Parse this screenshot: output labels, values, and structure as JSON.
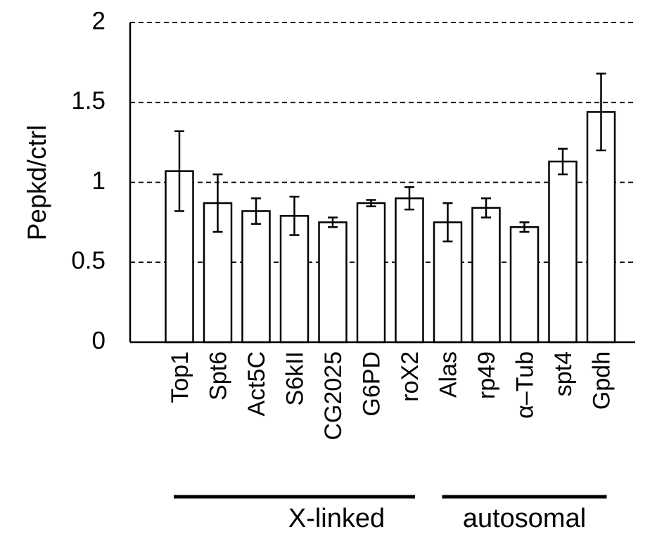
{
  "chart_data": {
    "type": "bar",
    "ylabel": "Pepkd/ctrl",
    "ylim": [
      0,
      2
    ],
    "yticks": [
      "0",
      "0.5",
      "1",
      "1.5",
      "2"
    ],
    "grid": "horizontal dashed",
    "categories": [
      "Top1",
      "Spt6",
      "Act5C",
      "S6kII",
      "CG2025",
      "G6PD",
      "roX2",
      "Alas",
      "rp49",
      "α–Tub",
      "spt4",
      "Gpdh"
    ],
    "values": [
      1.07,
      0.87,
      0.82,
      0.79,
      0.75,
      0.87,
      0.9,
      0.75,
      0.84,
      0.72,
      1.13,
      1.44
    ],
    "error": [
      0.25,
      0.18,
      0.08,
      0.12,
      0.03,
      0.02,
      0.07,
      0.12,
      0.06,
      0.03,
      0.08,
      0.24
    ],
    "groups": [
      {
        "label": "X-linked",
        "members": [
          "Top1",
          "Spt6",
          "Act5C",
          "S6kII",
          "CG2025",
          "G6PD",
          "roX2"
        ]
      },
      {
        "label": "autosomal",
        "members": [
          "Alas",
          "rp49",
          "α–Tub",
          "spt4",
          "Gpdh"
        ]
      }
    ],
    "colors": {
      "bar_fill": "#ffffff",
      "stroke": "#000000"
    }
  }
}
